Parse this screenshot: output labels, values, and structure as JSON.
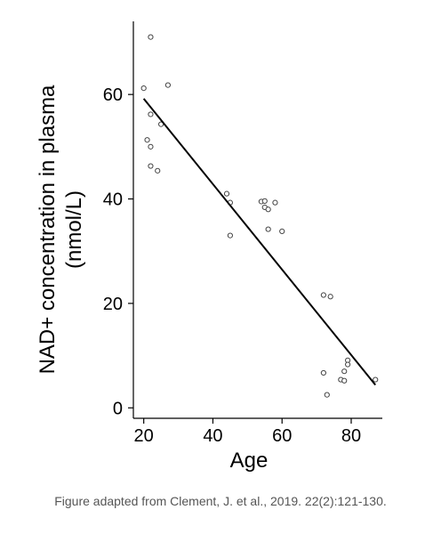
{
  "chart_data": {
    "type": "scatter",
    "xlabel": "Age",
    "ylabel_lines": [
      "NAD+ concentration in plasma",
      "(nmol/L)"
    ],
    "xlim": [
      17,
      89
    ],
    "ylim": [
      -2,
      74
    ],
    "xticks": [
      20,
      40,
      60,
      80
    ],
    "yticks": [
      0,
      20,
      40,
      60
    ],
    "grid": false,
    "points": [
      {
        "x": 22,
        "y": 71
      },
      {
        "x": 20,
        "y": 61.2
      },
      {
        "x": 27,
        "y": 61.8
      },
      {
        "x": 22,
        "y": 56.2
      },
      {
        "x": 25,
        "y": 54.3
      },
      {
        "x": 21,
        "y": 51.3
      },
      {
        "x": 22,
        "y": 50
      },
      {
        "x": 22,
        "y": 46.3
      },
      {
        "x": 24,
        "y": 45.4
      },
      {
        "x": 44,
        "y": 41
      },
      {
        "x": 45,
        "y": 39.3
      },
      {
        "x": 54,
        "y": 39.5
      },
      {
        "x": 55,
        "y": 39.6
      },
      {
        "x": 55,
        "y": 38.4
      },
      {
        "x": 56,
        "y": 38
      },
      {
        "x": 58,
        "y": 39.3
      },
      {
        "x": 45,
        "y": 33
      },
      {
        "x": 56,
        "y": 34.2
      },
      {
        "x": 60,
        "y": 33.8
      },
      {
        "x": 72,
        "y": 21.6
      },
      {
        "x": 74,
        "y": 21.3
      },
      {
        "x": 79,
        "y": 9.1
      },
      {
        "x": 79,
        "y": 8.3
      },
      {
        "x": 78,
        "y": 7
      },
      {
        "x": 72,
        "y": 6.7
      },
      {
        "x": 77,
        "y": 5.4
      },
      {
        "x": 78,
        "y": 5.2
      },
      {
        "x": 87,
        "y": 5.4
      },
      {
        "x": 73,
        "y": 2.5
      }
    ],
    "fit_line": [
      {
        "x": 20,
        "y": 59.2
      },
      {
        "x": 87,
        "y": 4.4
      }
    ],
    "colors": {
      "marker_stroke": "#444444",
      "line": "#000000",
      "axis": "#000000",
      "caption": "#555555"
    }
  },
  "caption": "Figure adapted from Clement, J. et al., 2019. 22(2):121-130."
}
